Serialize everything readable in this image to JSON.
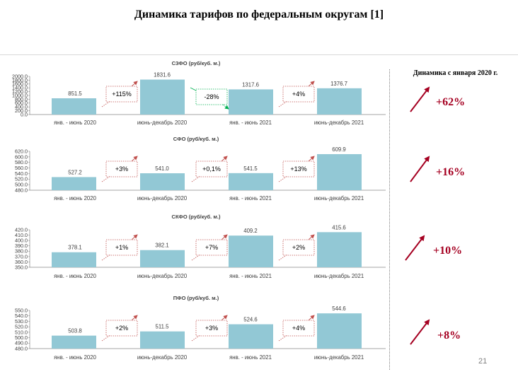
{
  "slide": {
    "title": "Динамика тарифов по федеральным округам [1]",
    "page_number": "21",
    "right_heading": "Динамика с января 2020 г.",
    "accent_color": "#a50021",
    "bar_color": "#92c8d5",
    "up_arrow_icon": "arrow-up-right-icon"
  },
  "summary": [
    {
      "district": "СЗФО",
      "change": "+62%"
    },
    {
      "district": "СФО",
      "change": "+16%"
    },
    {
      "district": "СКФО",
      "change": "+10%"
    },
    {
      "district": "ПФО",
      "change": "+8%"
    }
  ],
  "chart_data": [
    {
      "type": "bar",
      "title": "СЗФО (руб/куб. м.)",
      "categories": [
        "янв. - июнь 2020",
        "июнь-декабрь 2020",
        "янв. - июнь 2021",
        "июнь-декабрь 2021"
      ],
      "values": [
        851.5,
        1831.6,
        1317.6,
        1376.7
      ],
      "data_labels": [
        "851.5",
        "1831.6",
        "1317.6",
        "1376.7"
      ],
      "ylim": [
        0,
        2000
      ],
      "yticks": [
        "0.0",
        "200.0",
        "400.0",
        "600.0",
        "800.0",
        "1000.0",
        "1200.0",
        "1400.0",
        "1600.0",
        "1800.0",
        "2000.0"
      ],
      "changes": [
        {
          "label": "+115%",
          "direction": "up"
        },
        {
          "label": "-28%",
          "direction": "down"
        },
        {
          "label": "+4%",
          "direction": "up"
        }
      ]
    },
    {
      "type": "bar",
      "title": "СФО (руб/куб. м.)",
      "categories": [
        "янв. - июнь 2020",
        "июнь-декабрь 2020",
        "янв. - июнь 2021",
        "июнь-декабрь 2021"
      ],
      "values": [
        527.2,
        541.0,
        541.5,
        609.9
      ],
      "data_labels": [
        "527.2",
        "541.0",
        "541.5",
        "609.9"
      ],
      "ylim": [
        480,
        620
      ],
      "yticks": [
        "480.0",
        "500.0",
        "520.0",
        "540.0",
        "560.0",
        "580.0",
        "600.0",
        "620.0"
      ],
      "changes": [
        {
          "label": "+3%",
          "direction": "up"
        },
        {
          "label": "+0,1%",
          "direction": "up"
        },
        {
          "label": "+13%",
          "direction": "up"
        }
      ]
    },
    {
      "type": "bar",
      "title": "СКФО (руб/куб. м.)",
      "categories": [
        "янв. - июнь 2020",
        "июнь-декабрь 2020",
        "янв. - июнь 2021",
        "июнь-декабрь 2021"
      ],
      "values": [
        378.1,
        382.1,
        409.2,
        415.6
      ],
      "data_labels": [
        "378.1",
        "382.1",
        "409.2",
        "415.6"
      ],
      "ylim": [
        350,
        420
      ],
      "yticks": [
        "350.0",
        "360.0",
        "370.0",
        "380.0",
        "390.0",
        "400.0",
        "410.0",
        "420.0"
      ],
      "changes": [
        {
          "label": "+1%",
          "direction": "up"
        },
        {
          "label": "+7%",
          "direction": "up"
        },
        {
          "label": "+2%",
          "direction": "up"
        }
      ]
    },
    {
      "type": "bar",
      "title": "ПФО (руб/куб. м.)",
      "categories": [
        "янв. - июнь 2020",
        "июнь-декабрь 2020",
        "янв. - июнь 2021",
        "июнь-декабрь 2021"
      ],
      "values": [
        503.8,
        511.5,
        524.6,
        544.6
      ],
      "data_labels": [
        "503.8",
        "511.5",
        "524.6",
        "544.6"
      ],
      "ylim": [
        480,
        550
      ],
      "yticks": [
        "480.0",
        "490.0",
        "500.0",
        "510.0",
        "520.0",
        "530.0",
        "540.0",
        "550.0"
      ],
      "changes": [
        {
          "label": "+2%",
          "direction": "up"
        },
        {
          "label": "+3%",
          "direction": "up"
        },
        {
          "label": "+4%",
          "direction": "up"
        }
      ]
    }
  ]
}
